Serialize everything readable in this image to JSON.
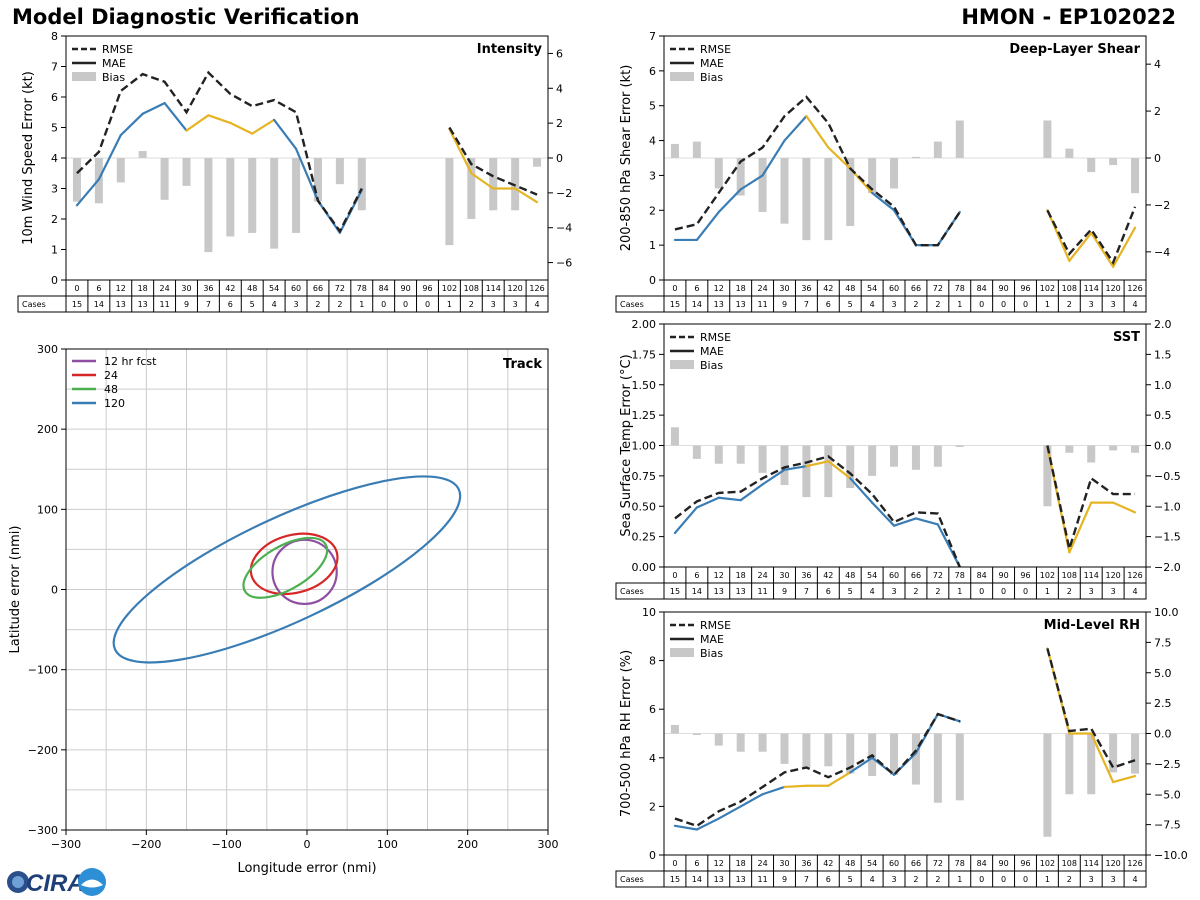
{
  "title_left": "Model Diagnostic Verification",
  "title_right": "HMON - EP102022",
  "logo_text": "CIRA",
  "colors": {
    "rmse": "#222222",
    "mae": "#3a7db5",
    "mae_alt": "#e6b422",
    "bias": "#c8c8c8",
    "grid": "#cccccc",
    "ellipse_12": "#8e4fa3",
    "ellipse_24": "#d62728",
    "ellipse_48": "#4caf50",
    "ellipse_120": "#3a7db5"
  },
  "chart_data": [
    {
      "id": "intensity",
      "type": "line",
      "title": "Intensity",
      "ylabel": "10m Wind Speed Error (kt)",
      "ylim": [
        0,
        8
      ],
      "yticks": [
        0,
        1,
        2,
        3,
        4,
        5,
        6,
        7,
        8
      ],
      "y2lim": [
        -7,
        7
      ],
      "y2ticks": [
        -6,
        -4,
        -2,
        0,
        2,
        4,
        6
      ],
      "legend": [
        "RMSE",
        "MAE",
        "Bias"
      ],
      "table_label": "Cases",
      "hours": [
        0,
        6,
        12,
        18,
        24,
        30,
        36,
        42,
        48,
        54,
        60,
        66,
        72,
        78,
        84,
        90,
        96,
        102,
        108,
        114,
        120,
        126
      ],
      "cases": [
        15,
        14,
        13,
        13,
        11,
        9,
        7,
        6,
        5,
        4,
        3,
        2,
        2,
        1,
        0,
        0,
        0,
        1,
        2,
        3,
        3,
        4
      ],
      "rmse": [
        3.5,
        4.2,
        6.2,
        6.75,
        6.5,
        5.5,
        6.8,
        6.1,
        5.7,
        5.9,
        5.5,
        2.6,
        1.6,
        3.0,
        null,
        null,
        null,
        5.0,
        3.8,
        3.4,
        3.1,
        2.8
      ],
      "mae": [
        2.45,
        3.3,
        4.75,
        5.45,
        5.8,
        4.9,
        5.4,
        5.15,
        4.8,
        5.25,
        4.3,
        2.6,
        1.55,
        2.95,
        null,
        null,
        null,
        4.95,
        3.5,
        3.0,
        3.0,
        2.55
      ],
      "bias": [
        -2.5,
        -2.6,
        -1.4,
        0.4,
        -2.4,
        -1.6,
        -5.4,
        -4.5,
        -4.3,
        -5.2,
        -4.3,
        -2.5,
        -1.5,
        -3.0,
        null,
        null,
        null,
        -5.0,
        -3.5,
        -3.0,
        -3.0,
        -0.5
      ]
    },
    {
      "id": "shear",
      "type": "line",
      "title": "Deep-Layer Shear",
      "ylabel": "200-850 hPa Shear Error (kt)",
      "ylim": [
        0,
        7
      ],
      "yticks": [
        0,
        1,
        2,
        3,
        4,
        5,
        6,
        7
      ],
      "y2lim": [
        -5.2,
        5.2
      ],
      "y2ticks": [
        -4,
        -2,
        0,
        2,
        4
      ],
      "legend": [
        "RMSE",
        "MAE",
        "Bias"
      ],
      "table_label": "Cases",
      "hours": [
        0,
        6,
        12,
        18,
        24,
        30,
        36,
        42,
        48,
        54,
        60,
        66,
        72,
        78,
        84,
        90,
        96,
        102,
        108,
        114,
        120,
        126
      ],
      "cases": [
        15,
        14,
        13,
        13,
        11,
        9,
        7,
        6,
        5,
        4,
        3,
        2,
        2,
        1,
        0,
        0,
        0,
        1,
        2,
        3,
        3,
        4
      ],
      "rmse": [
        1.45,
        1.6,
        2.5,
        3.4,
        3.8,
        4.7,
        5.25,
        4.5,
        3.2,
        2.6,
        2.1,
        1.0,
        1.0,
        1.95,
        null,
        null,
        null,
        2.0,
        0.75,
        1.45,
        0.5,
        2.1
      ],
      "mae": [
        1.15,
        1.15,
        1.95,
        2.6,
        3.0,
        4.0,
        4.7,
        3.8,
        3.2,
        2.5,
        2.0,
        1.0,
        1.0,
        1.95,
        null,
        null,
        null,
        2.0,
        0.55,
        1.35,
        0.38,
        1.5
      ],
      "bias": [
        0.6,
        0.7,
        -1.3,
        -1.6,
        -2.3,
        -2.8,
        -3.5,
        -3.5,
        -2.9,
        -1.5,
        -1.3,
        0.05,
        0.7,
        1.6,
        null,
        null,
        null,
        1.6,
        0.4,
        -0.6,
        -0.3,
        -1.5
      ]
    },
    {
      "id": "sst",
      "type": "line",
      "title": "SST",
      "ylabel": "Sea Surface Temp Error (°C)",
      "ylim": [
        0,
        2
      ],
      "yticks": [
        0,
        0.25,
        0.5,
        0.75,
        1.0,
        1.25,
        1.5,
        1.75,
        2.0
      ],
      "ytick_labels": [
        "0.00",
        "0.25",
        "0.50",
        "0.75",
        "1.00",
        "1.25",
        "1.50",
        "1.75",
        "2.00"
      ],
      "y2lim": [
        -2,
        2
      ],
      "y2ticks": [
        -2,
        -1.5,
        -1,
        -0.5,
        0,
        0.5,
        1,
        1.5,
        2
      ],
      "y2tick_labels": [
        "−2.0",
        "−1.5",
        "−1.0",
        "−0.5",
        "0.0",
        "0.5",
        "1.0",
        "1.5",
        "2.0"
      ],
      "legend": [
        "RMSE",
        "MAE",
        "Bias"
      ],
      "table_label": "Cases",
      "hours": [
        0,
        6,
        12,
        18,
        24,
        30,
        36,
        42,
        48,
        54,
        60,
        66,
        72,
        78,
        84,
        90,
        96,
        102,
        108,
        114,
        120,
        126
      ],
      "cases": [
        15,
        14,
        13,
        13,
        11,
        9,
        7,
        6,
        5,
        4,
        3,
        2,
        2,
        1,
        0,
        0,
        0,
        1,
        2,
        3,
        3,
        4
      ],
      "rmse": [
        0.4,
        0.54,
        0.61,
        0.62,
        0.73,
        0.82,
        0.86,
        0.91,
        0.77,
        0.6,
        0.37,
        0.45,
        0.44,
        0.0,
        null,
        null,
        null,
        1.0,
        0.15,
        0.73,
        0.6,
        0.6
      ],
      "mae": [
        0.28,
        0.49,
        0.57,
        0.55,
        0.68,
        0.8,
        0.83,
        0.87,
        0.73,
        0.53,
        0.34,
        0.4,
        0.35,
        0.0,
        null,
        null,
        null,
        0.99,
        0.12,
        0.53,
        0.53,
        0.45
      ],
      "bias": [
        0.3,
        -0.22,
        -0.3,
        -0.3,
        -0.45,
        -0.65,
        -0.85,
        -0.85,
        -0.7,
        -0.5,
        -0.35,
        -0.4,
        -0.35,
        0.0,
        null,
        null,
        null,
        -1.0,
        -0.12,
        -0.28,
        -0.08,
        -0.12
      ]
    },
    {
      "id": "rh",
      "type": "line",
      "title": "Mid-Level RH",
      "ylabel": "700-500 hPa RH Error (%)",
      "ylim": [
        0,
        10
      ],
      "yticks": [
        0,
        2,
        4,
        6,
        8,
        10
      ],
      "y2lim": [
        -10,
        10
      ],
      "y2ticks": [
        -10,
        -7.5,
        -5,
        -2.5,
        0,
        2.5,
        5,
        7.5,
        10
      ],
      "y2tick_labels": [
        "−10.0",
        "−7.5",
        "−5.0",
        "−2.5",
        "0.0",
        "2.5",
        "5.0",
        "7.5",
        "10.0"
      ],
      "legend": [
        "RMSE",
        "MAE",
        "Bias"
      ],
      "table_label": "Cases",
      "hours": [
        0,
        6,
        12,
        18,
        24,
        30,
        36,
        42,
        48,
        54,
        60,
        66,
        72,
        78,
        84,
        90,
        96,
        102,
        108,
        114,
        120,
        126
      ],
      "cases": [
        15,
        14,
        13,
        13,
        11,
        9,
        7,
        6,
        5,
        4,
        3,
        2,
        2,
        1,
        0,
        0,
        0,
        1,
        2,
        3,
        3,
        4
      ],
      "rmse": [
        1.5,
        1.2,
        1.8,
        2.2,
        2.8,
        3.4,
        3.6,
        3.2,
        3.6,
        4.1,
        3.3,
        4.3,
        5.8,
        5.5,
        null,
        null,
        null,
        8.5,
        5.1,
        5.2,
        3.6,
        3.9
      ],
      "mae": [
        1.2,
        1.05,
        1.5,
        2.0,
        2.5,
        2.8,
        2.85,
        2.85,
        3.4,
        4.0,
        3.3,
        4.2,
        5.8,
        5.5,
        null,
        null,
        null,
        8.5,
        5.0,
        5.0,
        3.0,
        3.25
      ],
      "bias": [
        0.7,
        -0.1,
        -1.0,
        -1.5,
        -1.5,
        -2.5,
        -2.8,
        -2.7,
        -3.3,
        -3.5,
        -3.4,
        -4.2,
        -5.7,
        -5.5,
        null,
        null,
        null,
        -8.5,
        -5.0,
        -5.0,
        -3.2,
        -3.3
      ]
    },
    {
      "id": "track",
      "type": "scatter",
      "title": "Track",
      "xlabel": "Longitude error (nmi)",
      "ylabel": "Latitude error (nmi)",
      "xlim": [
        -300,
        300
      ],
      "ylim": [
        -300,
        300
      ],
      "xticks": [
        -300,
        -200,
        -100,
        0,
        100,
        200,
        300
      ],
      "yticks": [
        -300,
        -200,
        -100,
        0,
        100,
        200,
        300
      ],
      "tick_labels": [
        "−300",
        "−200",
        "−100",
        "0",
        "100",
        "200",
        "300"
      ],
      "grid_step": 50,
      "legend_placement": "top-left",
      "ellipses": [
        {
          "label": "12 hr fcst",
          "cx": -3,
          "cy": 22,
          "rx": 40,
          "ry": 40,
          "angle": 0
        },
        {
          "label": "24",
          "cx": -16,
          "cy": 32,
          "rx": 55,
          "ry": 36,
          "angle": 15
        },
        {
          "label": "48",
          "cx": -27,
          "cy": 27,
          "rx": 58,
          "ry": 27,
          "angle": 30
        },
        {
          "label": "120",
          "cx": -25,
          "cy": 25,
          "rx": 236,
          "ry": 65,
          "angle": 25
        }
      ]
    }
  ]
}
